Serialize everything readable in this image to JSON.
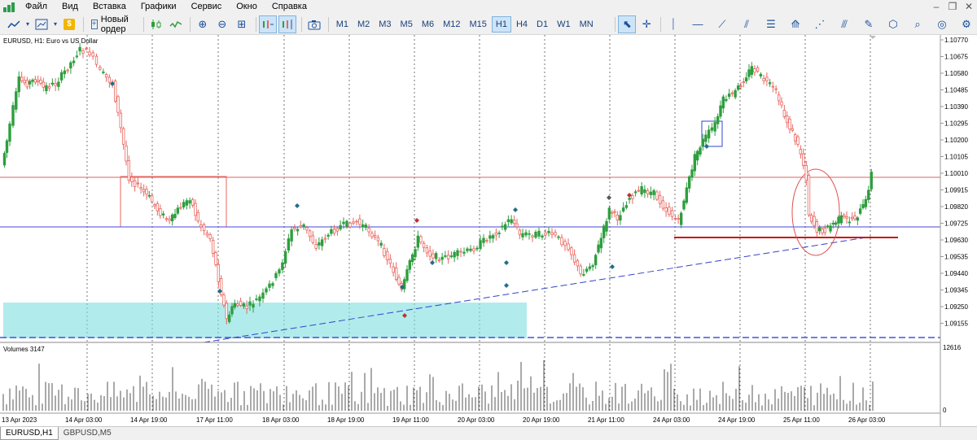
{
  "menu": [
    "Файл",
    "Вид",
    "Вставка",
    "Графики",
    "Сервис",
    "Окно",
    "Справка"
  ],
  "toolbar": {
    "new_order_label": "Новый ордер",
    "timeframes": [
      "M1",
      "M2",
      "M3",
      "M5",
      "M6",
      "M12",
      "M15",
      "H1",
      "H4",
      "D1",
      "W1",
      "MN"
    ],
    "active_timeframe": "H1"
  },
  "chart": {
    "info_label": "EURUSD, H1:  Euro vs US Dollar",
    "volumes_label": "Volumes 3147",
    "volume_scale_max": "12616",
    "volume_scale_min": "0",
    "price_scale": [
      "1.10770",
      "1.10675",
      "1.10580",
      "1.10485",
      "1.10390",
      "1.10295",
      "1.10200",
      "1.10105",
      "1.10010",
      "1.09915",
      "1.09820",
      "1.09725",
      "1.09630",
      "1.09535",
      "1.09440",
      "1.09345",
      "1.09250",
      "1.09155"
    ],
    "time_labels": [
      "13 Apr 2023",
      "14 Apr 03:00",
      "14 Apr 19:00",
      "17 Apr 11:00",
      "18 Apr 03:00",
      "18 Apr 19:00",
      "19 Apr 11:00",
      "20 Apr 03:00",
      "20 Apr 19:00",
      "21 Apr 11:00",
      "24 Apr 03:00",
      "24 Apr 19:00",
      "25 Apr 11:00",
      "26 Apr 03:00"
    ],
    "colors": {
      "bull": "#2e9e3e",
      "bear": "#e8665f",
      "trendline": "#3344cc",
      "zone": "#7fdde0",
      "support": "#cc1111"
    }
  },
  "symbol_tabs": [
    "EURUSD,H1",
    "GBPUSD,M5"
  ],
  "active_symbol_tab": "EURUSD,H1"
}
